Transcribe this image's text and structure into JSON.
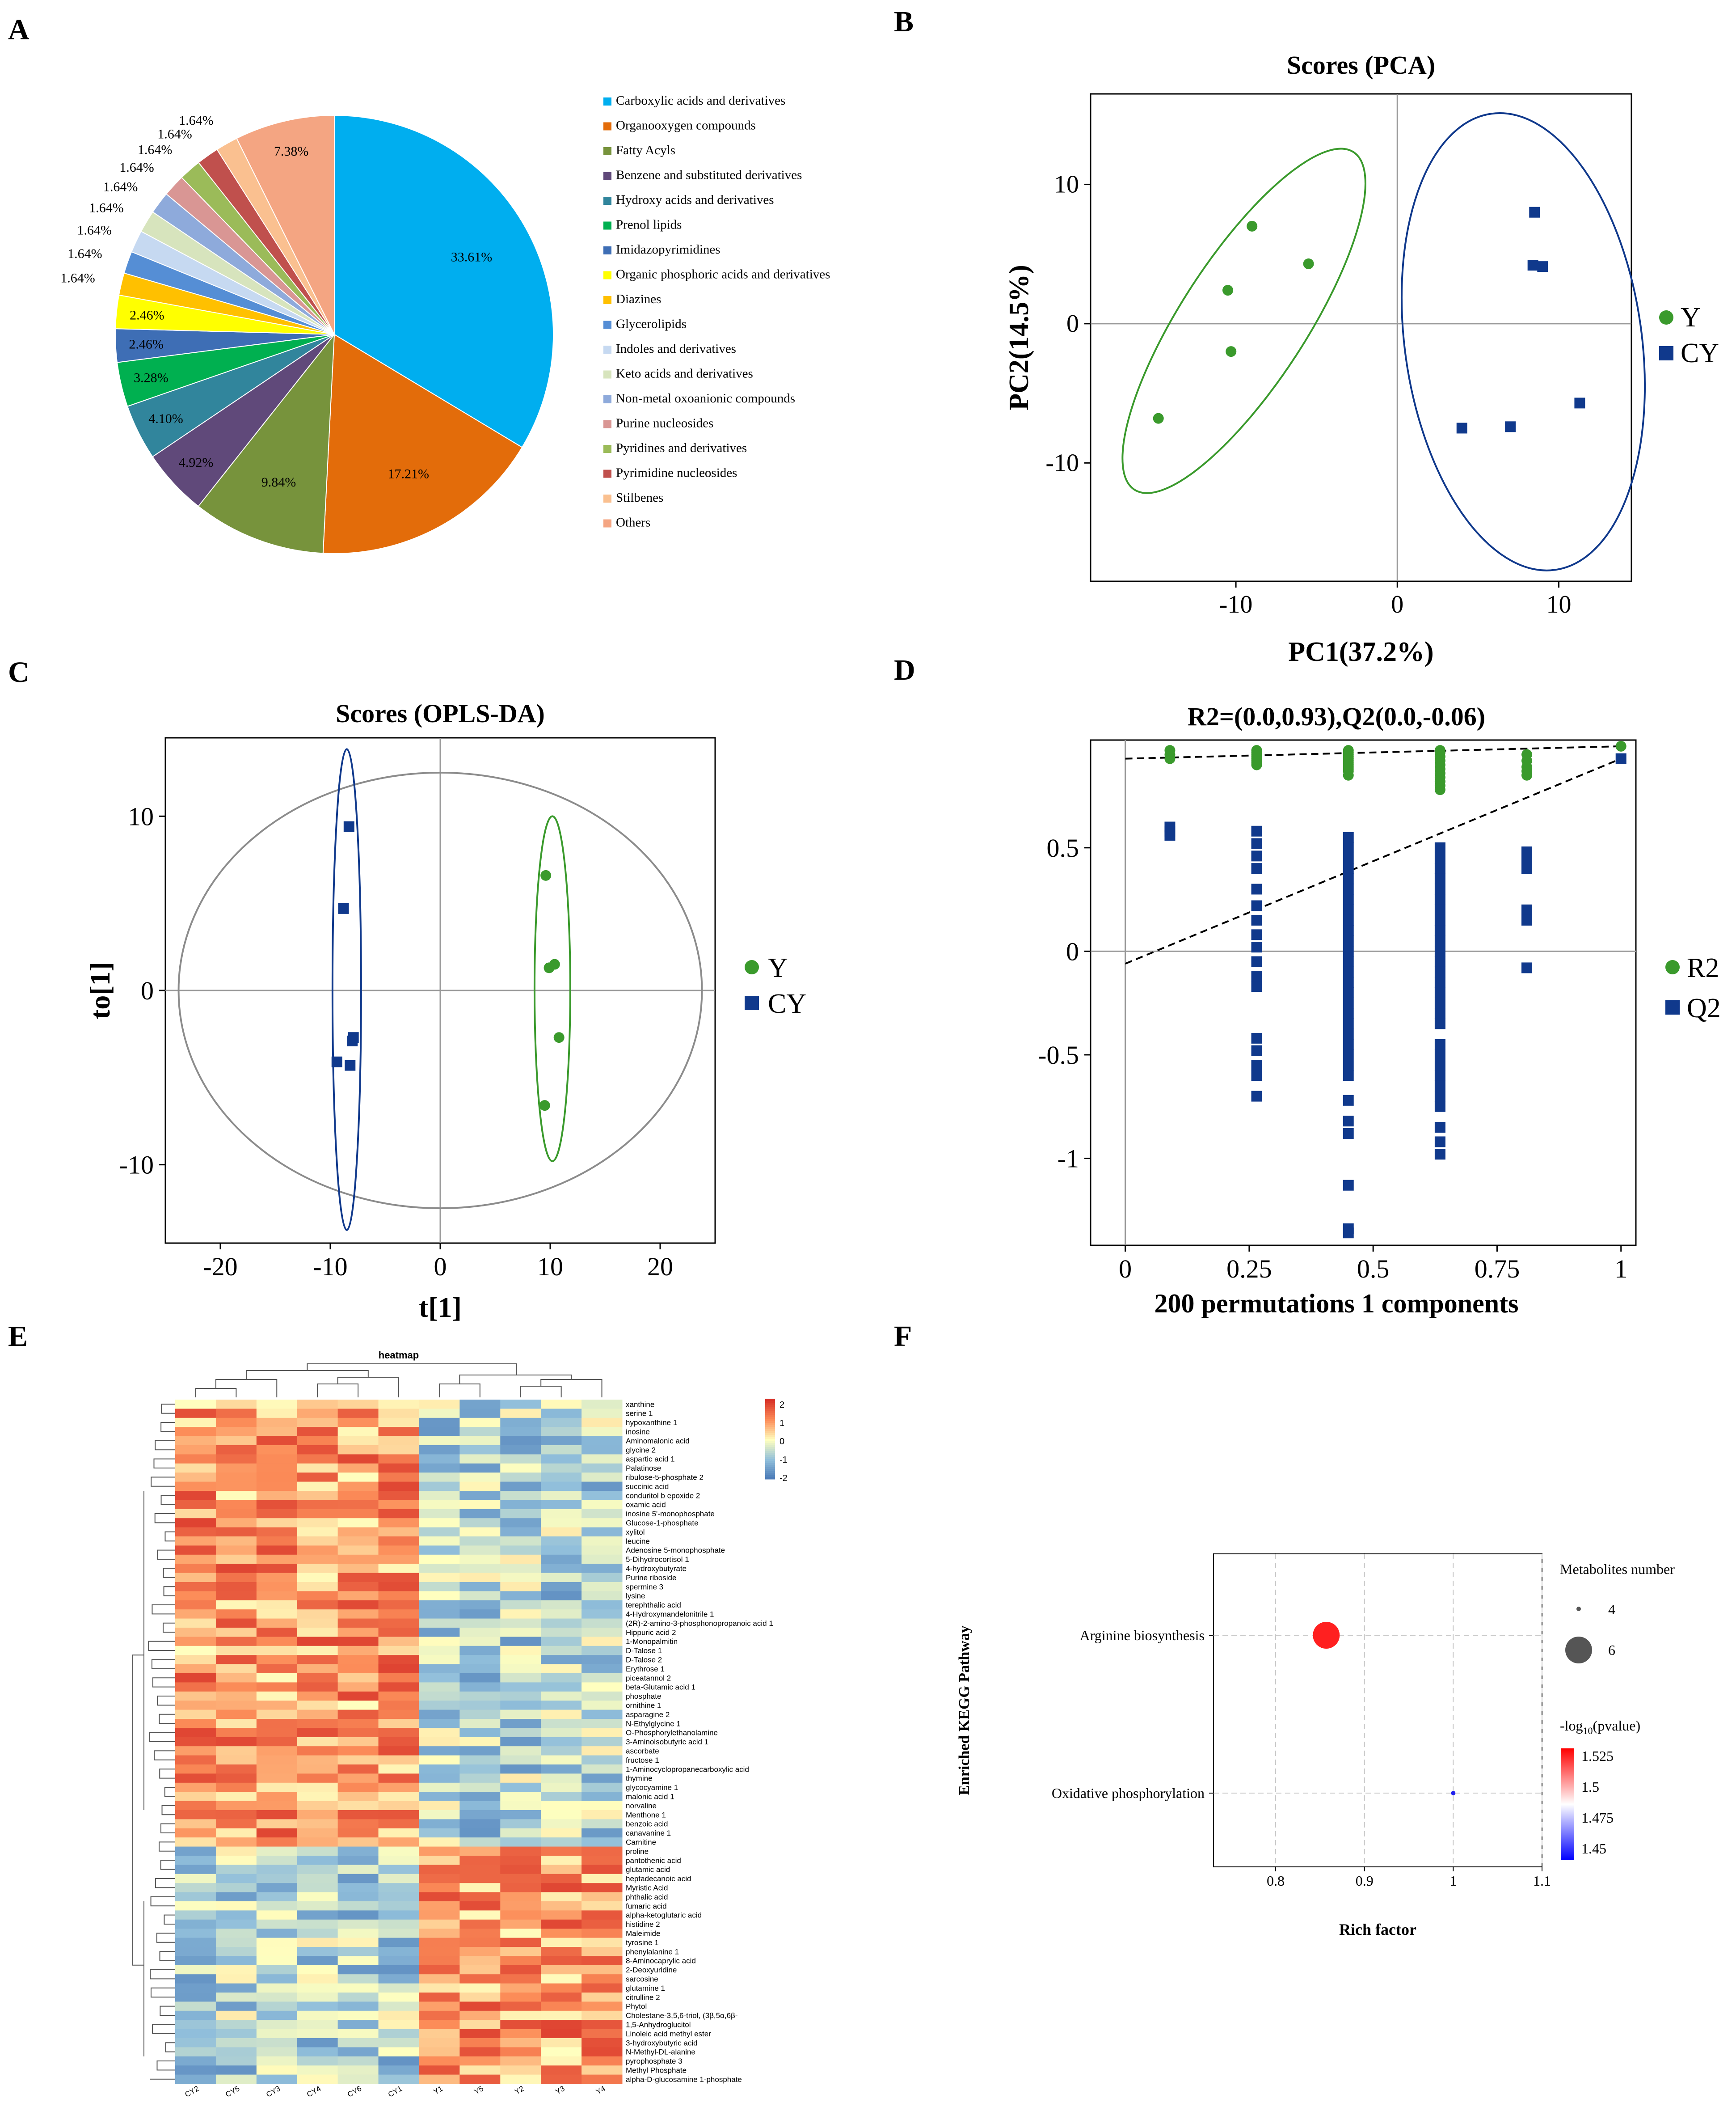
{
  "panels": {
    "A": "A",
    "B": "B",
    "C": "C",
    "D": "D",
    "E": "E",
    "F": "F"
  },
  "colors": {
    "green": "#3a9a2c",
    "blue": "#10398c",
    "grid": "#999999"
  },
  "chart_data": [
    {
      "id": "A",
      "type": "pie",
      "title": "",
      "legend_placement": "right",
      "slices": [
        {
          "label": "Carboxylic acids and derivatives",
          "pct": 33.61,
          "text": "33.61%",
          "color": "#00aeef"
        },
        {
          "label": "Organooxygen compounds",
          "pct": 17.21,
          "text": "17.21%",
          "color": "#e36c0a"
        },
        {
          "label": "Fatty Acyls",
          "pct": 9.84,
          "text": "9.84%",
          "color": "#77933c"
        },
        {
          "label": "Benzene and substituted derivatives",
          "pct": 4.92,
          "text": "4.92%",
          "color": "#60497a"
        },
        {
          "label": "Hydroxy acids and derivatives",
          "pct": 4.1,
          "text": "4.10%",
          "color": "#31859c"
        },
        {
          "label": "Prenol lipids",
          "pct": 3.28,
          "text": "3.28%",
          "color": "#00b050"
        },
        {
          "label": "Imidazopyrimidines",
          "pct": 2.46,
          "text": "2.46%",
          "color": "#3e6eb5"
        },
        {
          "label": "Organic phosphoric acids and derivatives",
          "pct": 2.46,
          "text": "2.46%",
          "color": "#ffff00"
        },
        {
          "label": "Diazines",
          "pct": 1.64,
          "text": "1.64%",
          "color": "#ffc000"
        },
        {
          "label": "Glycerolipids",
          "pct": 1.64,
          "text": "1.64%",
          "color": "#558ed5"
        },
        {
          "label": "Indoles and derivatives",
          "pct": 1.64,
          "text": "1.64%",
          "color": "#c6d9f1"
        },
        {
          "label": "Keto acids and derivatives",
          "pct": 1.64,
          "text": "1.64%",
          "color": "#d7e4bd"
        },
        {
          "label": "Non-metal oxoanionic compounds",
          "pct": 1.64,
          "text": "1.64%",
          "color": "#8eaadb"
        },
        {
          "label": "Purine nucleosides",
          "pct": 1.64,
          "text": "1.64%",
          "color": "#d99694"
        },
        {
          "label": "Pyridines and derivatives",
          "pct": 1.64,
          "text": "1.64%",
          "color": "#9bbb59"
        },
        {
          "label": "Pyrimidine nucleosides",
          "pct": 1.64,
          "text": "1.64%",
          "color": "#c0504d"
        },
        {
          "label": "Stilbenes",
          "pct": 1.64,
          "text": "1.64%",
          "color": "#fac090"
        },
        {
          "label": "Others",
          "pct": 7.38,
          "text": "7.38%",
          "color": "#f4a582"
        }
      ]
    },
    {
      "id": "B",
      "type": "scatter",
      "title": "Scores (PCA)",
      "xlabel": "PC1(37.2%)",
      "ylabel": "PC2(14.5%)",
      "xlim": [
        -19,
        14.5
      ],
      "ylim": [
        -18.5,
        16.5
      ],
      "xticks": [
        -10,
        0,
        10
      ],
      "yticks": [
        -10,
        0,
        10
      ],
      "legend_placement": "right",
      "series": [
        {
          "name": "Y",
          "marker": "circle",
          "color": "#3a9a2c",
          "points": [
            [
              -9,
              7
            ],
            [
              -5.5,
              4.3
            ],
            [
              -10.5,
              2.4
            ],
            [
              -10.3,
              -2
            ],
            [
              -14.8,
              -6.8
            ]
          ]
        },
        {
          "name": "CY",
          "marker": "square",
          "color": "#10398c",
          "points": [
            [
              8.5,
              8
            ],
            [
              8.4,
              4.2
            ],
            [
              9,
              4.1
            ],
            [
              11.3,
              -5.7
            ],
            [
              4,
              -7.5
            ],
            [
              7,
              -7.4
            ]
          ]
        }
      ]
    },
    {
      "id": "C",
      "type": "scatter",
      "title": "Scores (OPLS-DA)",
      "xlabel": "t[1]",
      "ylabel": "to[1]",
      "xlim": [
        -25,
        25
      ],
      "ylim": [
        -14.5,
        14.5
      ],
      "xticks": [
        -20,
        -10,
        0,
        10,
        20
      ],
      "yticks": [
        -10,
        0,
        10
      ],
      "legend_placement": "right",
      "series": [
        {
          "name": "Y",
          "marker": "circle",
          "color": "#3a9a2c",
          "points": [
            [
              9.6,
              6.6
            ],
            [
              10.4,
              1.5
            ],
            [
              9.9,
              1.3
            ],
            [
              10.8,
              -2.7
            ],
            [
              9.5,
              -6.6
            ]
          ]
        },
        {
          "name": "CY",
          "marker": "square",
          "color": "#10398c",
          "points": [
            [
              -8.3,
              9.4
            ],
            [
              -8.8,
              4.7
            ],
            [
              -7.9,
              -2.7
            ],
            [
              -8,
              -2.9
            ],
            [
              -9.4,
              -4.1
            ],
            [
              -8.2,
              -4.3
            ]
          ]
        }
      ]
    },
    {
      "id": "D",
      "type": "scatter",
      "title": "R2=(0.0,0.93),Q2(0.0,-0.06)",
      "xlabel": "200 permutations 1 components",
      "ylabel": "",
      "xlim": [
        -0.07,
        1.03
      ],
      "ylim": [
        -1.42,
        1.02
      ],
      "xticks": [
        0,
        0.25,
        0.5,
        0.75,
        1
      ],
      "xtick_labels": [
        "0",
        "0.25",
        "0.5",
        "0.75",
        "1"
      ],
      "yticks": [
        -1,
        -0.5,
        0,
        0.5
      ],
      "ytick_labels": [
        "-1",
        "-0.5",
        "0",
        "0.5"
      ],
      "legend_placement": "right",
      "r2_line": [
        [
          0,
          0.93
        ],
        [
          1,
          0.99
        ]
      ],
      "q2_line": [
        [
          0,
          -0.06
        ],
        [
          1,
          0.93
        ]
      ],
      "series": [
        {
          "name": "R2",
          "marker": "circle",
          "color": "#3a9a2c",
          "groups": [
            {
              "x": 0.09,
              "values": [
                0.93,
                0.95,
                0.97
              ]
            },
            {
              "x": 0.265,
              "values": [
                0.9,
                0.91,
                0.92,
                0.93,
                0.94,
                0.95,
                0.96,
                0.97
              ]
            },
            {
              "x": 0.45,
              "values": [
                0.85,
                0.87,
                0.88,
                0.89,
                0.9,
                0.91,
                0.92,
                0.93,
                0.94,
                0.95,
                0.96,
                0.97
              ]
            },
            {
              "x": 0.635,
              "values": [
                0.78,
                0.8,
                0.82,
                0.84,
                0.86,
                0.88,
                0.9,
                0.92,
                0.94,
                0.96,
                0.97
              ]
            },
            {
              "x": 0.81,
              "values": [
                0.85,
                0.87,
                0.89,
                0.92,
                0.95
              ]
            },
            {
              "x": 1.0,
              "values": [
                0.99
              ]
            }
          ]
        },
        {
          "name": "Q2",
          "marker": "square",
          "color": "#10398c",
          "groups": [
            {
              "x": 0.09,
              "values": [
                0.56,
                0.58,
                0.6
              ]
            },
            {
              "x": 0.265,
              "values": [
                0.58,
                0.52,
                0.46,
                0.4,
                0.3,
                0.22,
                0.15,
                0.08,
                0.02,
                -0.05,
                -0.12,
                -0.17,
                -0.42,
                -0.48,
                -0.55,
                -0.6,
                -0.7
              ]
            },
            {
              "x": 0.45,
              "values": [
                0.55,
                0.5,
                0.45,
                0.4,
                0.35,
                0.3,
                0.25,
                0.2,
                0.15,
                0.1,
                0.05,
                0,
                -0.05,
                -0.1,
                -0.15,
                -0.2,
                -0.25,
                -0.3,
                -0.35,
                -0.4,
                -0.45,
                -0.5,
                -0.55,
                -0.6,
                -0.72,
                -0.82,
                -0.88,
                -1.13,
                -1.34,
                -1.36
              ]
            },
            {
              "x": 0.635,
              "values": [
                0.5,
                0.45,
                0.4,
                0.35,
                0.3,
                0.25,
                0.2,
                0.15,
                0.1,
                0.05,
                0,
                -0.05,
                -0.1,
                -0.15,
                -0.2,
                -0.25,
                -0.3,
                -0.35,
                -0.45,
                -0.5,
                -0.55,
                -0.6,
                -0.65,
                -0.7,
                -0.75,
                -0.85,
                -0.92,
                -0.98
              ]
            },
            {
              "x": 0.81,
              "values": [
                0.48,
                0.43,
                0.4,
                0.2,
                0.15,
                -0.08
              ]
            },
            {
              "x": 1.0,
              "values": [
                0.93
              ]
            }
          ]
        }
      ]
    },
    {
      "id": "E",
      "type": "heatmap",
      "title": "heatmap",
      "columns": [
        "CY2",
        "CY5",
        "CY3",
        "CY4",
        "CY6",
        "CY1",
        "Y1",
        "Y5",
        "Y2",
        "Y3",
        "Y4"
      ],
      "rows": [
        "xanthine",
        "serine 1",
        "hypoxanthine 1",
        "inosine",
        "Aminomalonic acid",
        "glycine 2",
        "aspartic acid 1",
        "Palatinose",
        "ribulose-5-phosphate 2",
        "succinic acid",
        "conduritol b epoxide 2",
        "oxamic acid",
        "inosine 5'-monophosphate",
        "Glucose-1-phosphate",
        "xylitol",
        "leucine",
        "Adenosine 5-monophosphate",
        "5-Dihydrocortisol 1",
        "4-hydroxybutyrate",
        "Purine riboside",
        "spermine 3",
        "lysine",
        "terephthalic acid",
        "4-Hydroxymandelonitrile 1",
        "(2R)-2-amino-3-phosphonopropanoic acid 1",
        "Hippuric acid 2",
        "1-Monopalmitin",
        "D-Talose 1",
        "D-Talose 2",
        "Erythrose 1",
        "piceatannol 2",
        "beta-Glutamic acid 1",
        "phosphate",
        "ornithine 1",
        "asparagine 2",
        "N-Ethylglycine 1",
        "O-Phosphorylethanolamine",
        "3-Aminoisobutyric acid 1",
        "ascorbate",
        "fructose 1",
        "1-Aminocyclopropanecarboxylic acid",
        "thymine",
        "glycocyamine 1",
        "malonic acid 1",
        "norvaline",
        "Menthone 1",
        "benzoic acid",
        "canavanine 1",
        "Carnitine",
        "proline",
        "pantothenic acid",
        "glutamic acid",
        "heptadecanoic acid",
        "Myristic Acid",
        "phthalic acid",
        "fumaric acid",
        "alpha-ketoglutaric acid",
        "histidine 2",
        "Maleimide",
        "tyrosine 1",
        "phenylalanine 1",
        "8-Aminocaprylic acid",
        "2-Deoxyuridine",
        "sarcosine",
        "glutamine 1",
        "citrulline 2",
        "Phytol",
        "Cholestane-3,5,6-triol, (3β,5α,6β-",
        "1,5-Anhydroglucitol",
        "Linoleic acid methyl ester",
        "3-hydroxybutyric acid",
        "N-Methyl-DL-alanine",
        "pyrophosphate 3",
        "Methyl Phosphate",
        "alpha-D-glucosamine 1-phosphate"
      ],
      "legend_ticks": [
        "2",
        "1",
        "0",
        "-1",
        "-2"
      ],
      "color_range": [
        -2,
        2
      ]
    },
    {
      "id": "F",
      "type": "scatter",
      "title": "",
      "xlabel": "Rich factor",
      "ylabel": "Enriched KEGG Pathway",
      "xlim": [
        0.73,
        1.1
      ],
      "xticks": [
        0.8,
        0.9,
        1,
        1.1
      ],
      "xtick_labels": [
        "0.8",
        "0.9",
        "1",
        "1.1"
      ],
      "categories": [
        "Arginine biosynthesis",
        "Oxidative phosphorylation"
      ],
      "points": [
        {
          "pathway": "Arginine biosynthesis",
          "rich_factor": 0.857,
          "metabolites": 6,
          "neg_log10_p": 1.525,
          "color": "#ff2020"
        },
        {
          "pathway": "Oxidative phosphorylation",
          "rich_factor": 1.0,
          "metabolites": 1,
          "neg_log10_p": 1.44,
          "color": "#2020ee"
        }
      ],
      "size_legend": {
        "title": "Metabolites number",
        "labels": [
          "4",
          "6"
        ]
      },
      "color_legend": {
        "title": "-log",
        "title_sub": "10",
        "title_suffix": "(pvalue)",
        "labels": [
          "1.525",
          "1.5",
          "1.475",
          "1.45"
        ]
      },
      "legend_placement": "right"
    }
  ]
}
